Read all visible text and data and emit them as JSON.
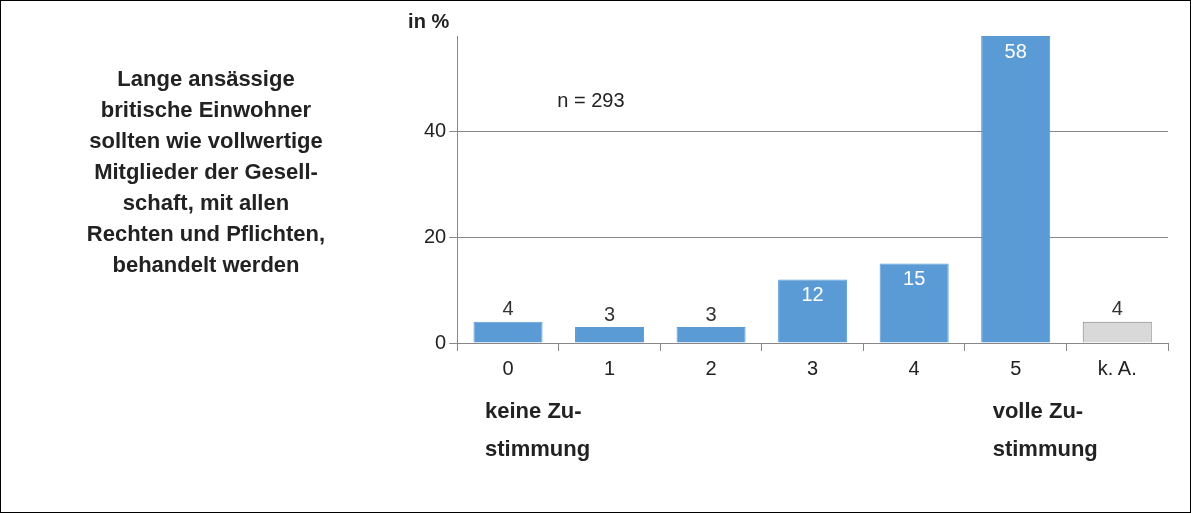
{
  "chart_data": {
    "type": "bar",
    "title": "Lange ansässige\nbritische Einwohner\nsollten wie vollwertige\nMitglieder der Gesell-\nschaft, mit allen\nRechten und Pflichten,\nbehandelt werden",
    "ylabel": "in %",
    "categories": [
      "0",
      "1",
      "2",
      "3",
      "4",
      "5",
      "k. A."
    ],
    "values": [
      4,
      3,
      3,
      12,
      15,
      58,
      4
    ],
    "colors": [
      "#5b9bd5",
      "#5b9bd5",
      "#5b9bd5",
      "#5b9bd5",
      "#5b9bd5",
      "#5b9bd5",
      "#d9d9d9"
    ],
    "ylim": [
      0,
      58
    ],
    "yticks": [
      0,
      20,
      40
    ],
    "grid": "y",
    "data_labels": true,
    "annotations": [
      "n = 293",
      "keine Zu-\nstimmung",
      "volle Zu-\nstimmung"
    ]
  }
}
